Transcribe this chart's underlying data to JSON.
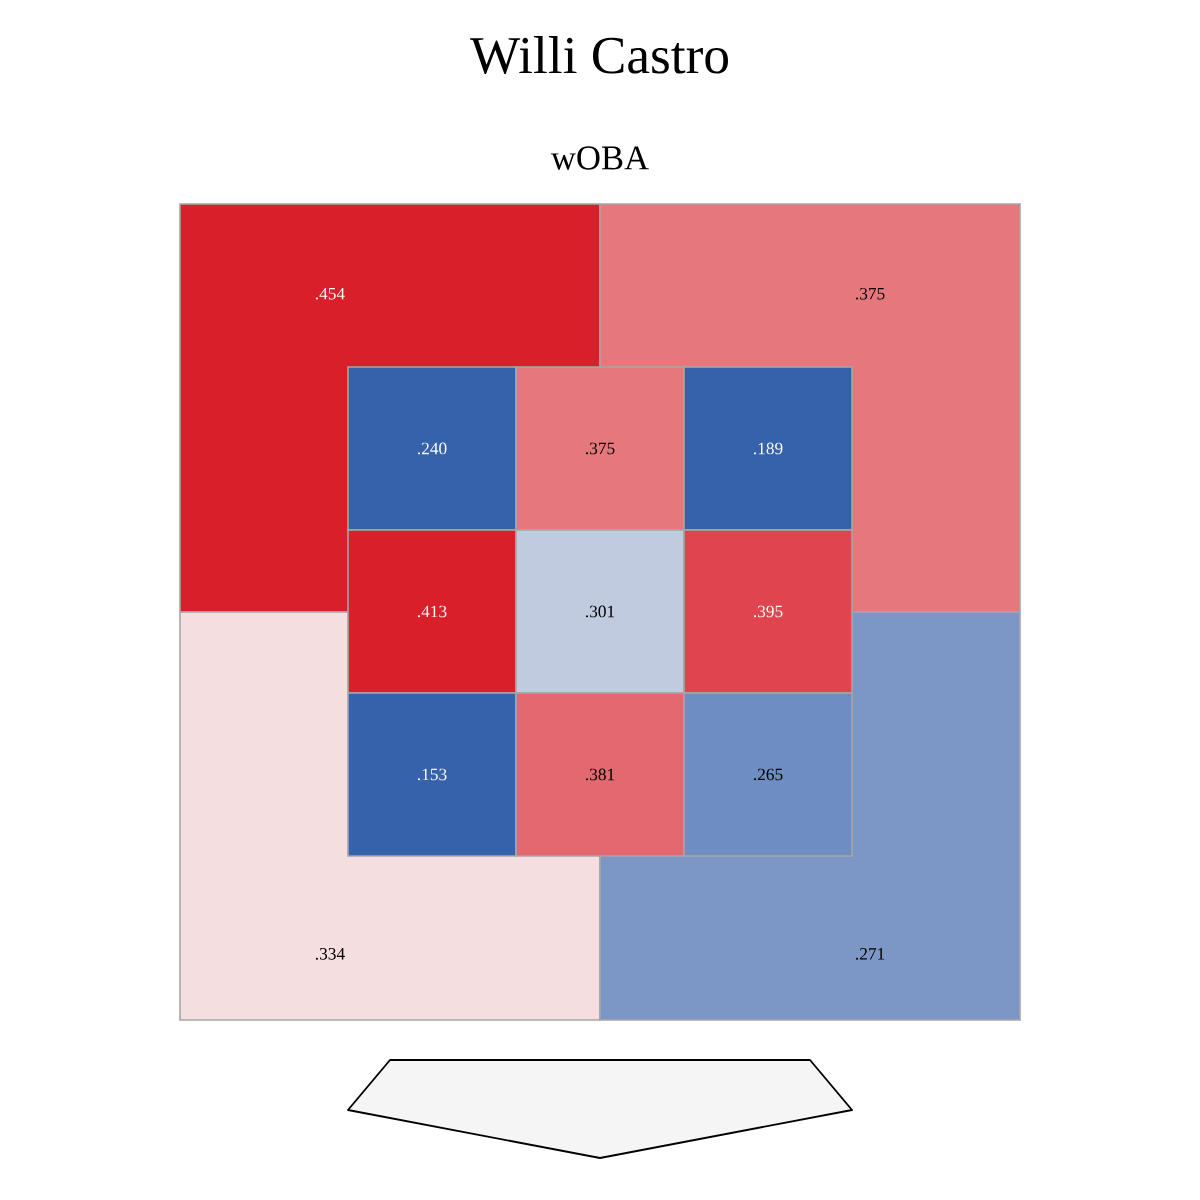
{
  "chart_data": [
    {
      "type": "heatmap",
      "title": "Willi Castro",
      "subtitle": "wOBA",
      "categories": [
        null,
        null
      ],
      "y_categories": [
        null,
        null
      ],
      "cells": [
        [
          0.454,
          0.375
        ],
        [
          0.334,
          0.271
        ]
      ],
      "cell_labels": [
        [
          ".454",
          ".375"
        ],
        [
          ".334",
          ".271"
        ]
      ]
    },
    {
      "type": "heatmap",
      "categories": [
        null,
        null,
        null
      ],
      "y_categories": [
        null,
        null,
        null
      ],
      "cells": [
        [
          0.24,
          0.375,
          0.189
        ],
        [
          0.413,
          0.301,
          0.395
        ],
        [
          0.153,
          0.381,
          0.265
        ]
      ],
      "cell_labels": [
        [
          ".240",
          ".375",
          ".189"
        ],
        [
          ".413",
          ".301",
          ".395"
        ],
        [
          ".153",
          ".381",
          ".265"
        ]
      ]
    }
  ]
}
